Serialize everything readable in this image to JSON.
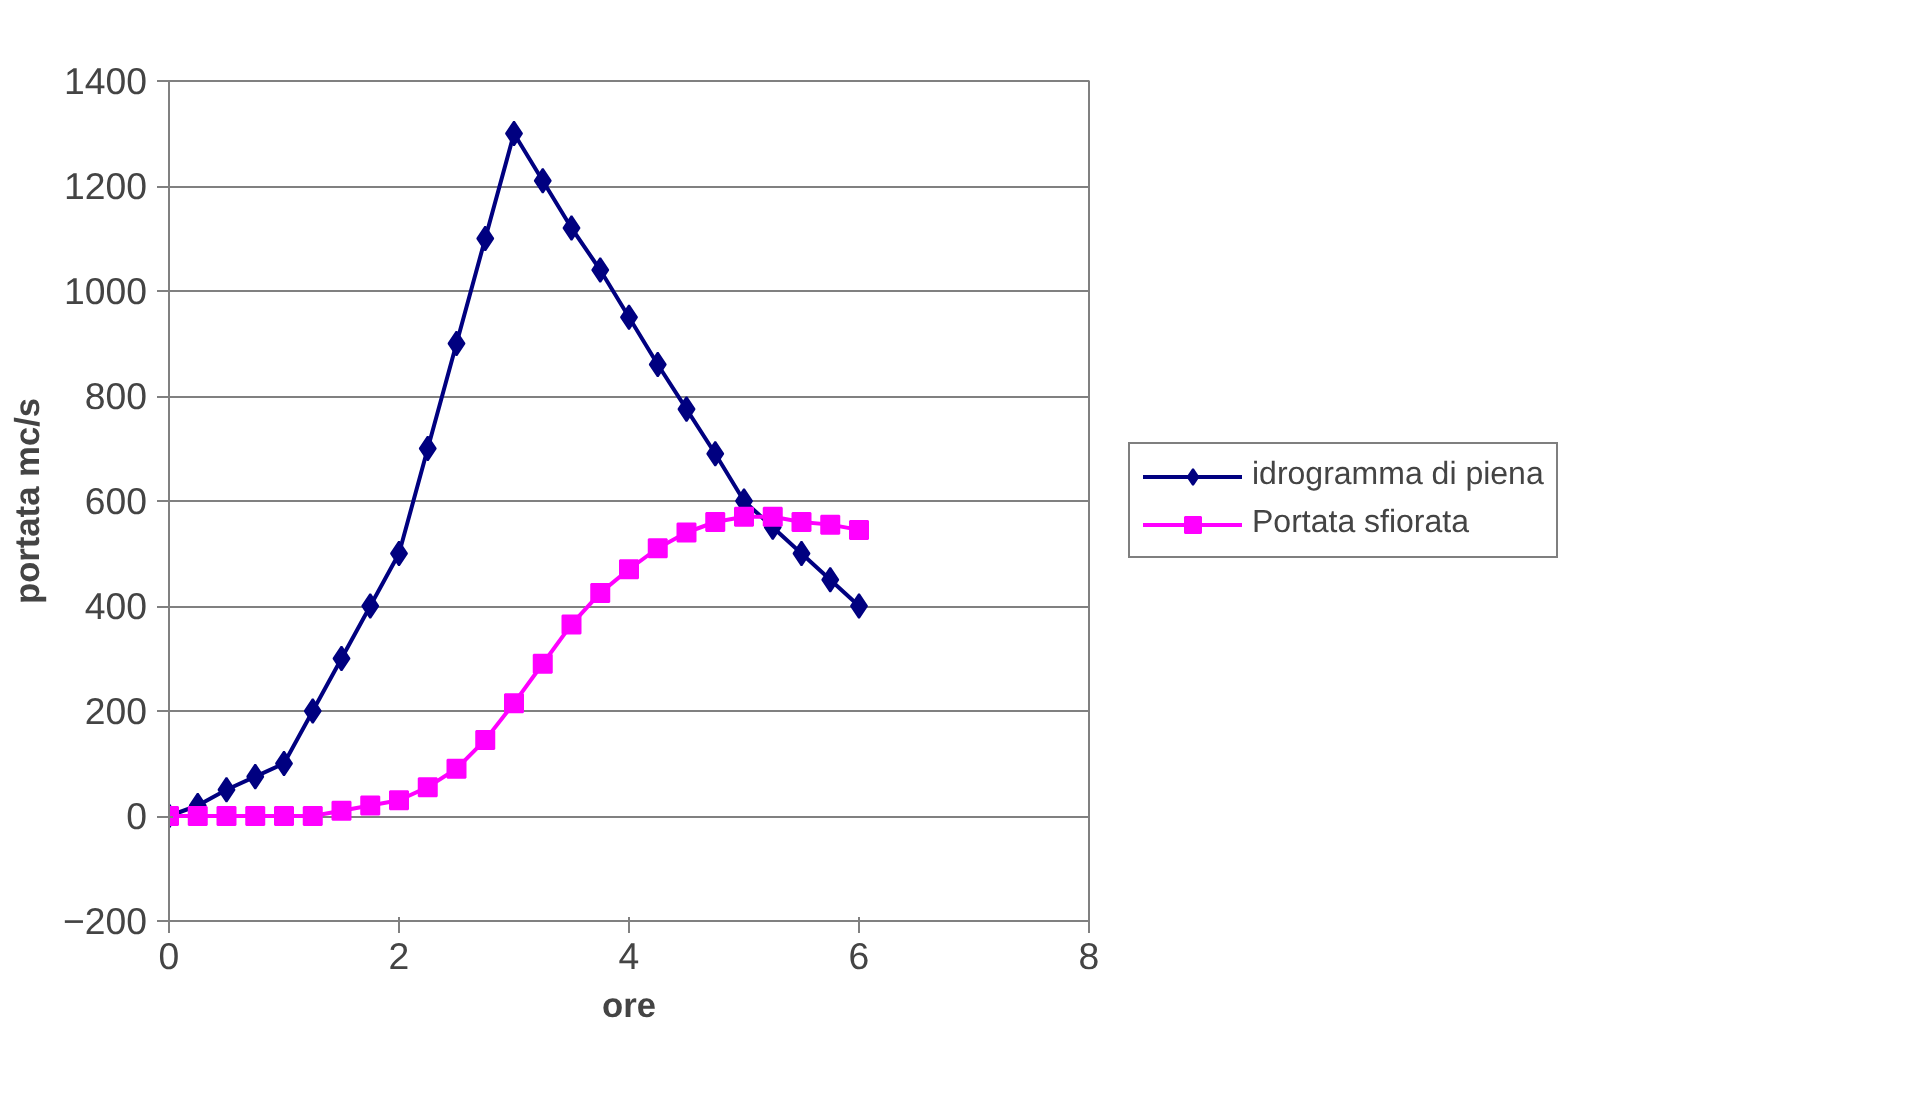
{
  "chart_data": {
    "type": "line",
    "xlabel": "ore",
    "ylabel": "portata mc/s",
    "x": [
      0,
      0.25,
      0.5,
      0.75,
      1,
      1.25,
      1.5,
      1.75,
      2,
      2.25,
      2.5,
      2.75,
      3,
      3.25,
      3.5,
      3.75,
      4,
      4.25,
      4.5,
      4.75,
      5,
      5.25,
      5.5,
      5.75,
      6
    ],
    "series": [
      {
        "name": "idrogramma di piena",
        "color": "#000080",
        "marker": "diamond",
        "values": [
          0,
          20,
          50,
          75,
          100,
          200,
          300,
          400,
          500,
          700,
          900,
          1100,
          1300,
          1210,
          1120,
          1040,
          950,
          860,
          775,
          690,
          600,
          550,
          500,
          450,
          400
        ]
      },
      {
        "name": "Portata sfiorata",
        "color": "#ff00ff",
        "marker": "square",
        "values": [
          0,
          0,
          0,
          0,
          0,
          0,
          10,
          20,
          30,
          55,
          90,
          145,
          215,
          290,
          365,
          425,
          470,
          510,
          540,
          560,
          570,
          570,
          560,
          555,
          545
        ]
      }
    ],
    "xlim": [
      0,
      8
    ],
    "xticks": [
      0,
      2,
      4,
      6,
      8
    ],
    "ylim": [
      -200,
      1400
    ],
    "yticks": [
      -200,
      0,
      200,
      400,
      600,
      800,
      1000,
      1200,
      1400
    ],
    "grid": "y",
    "legend": "right",
    "line_style": "solid"
  }
}
